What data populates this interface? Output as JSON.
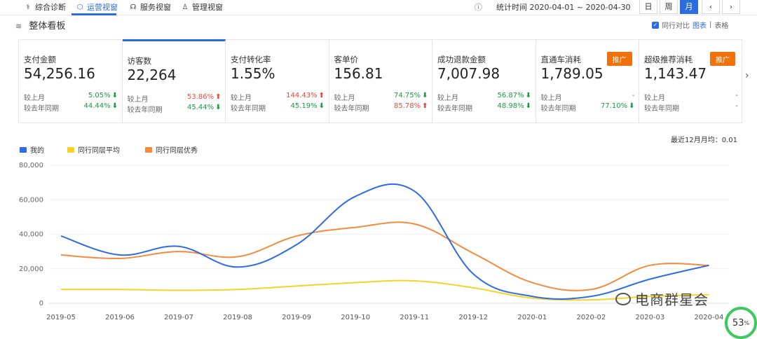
{
  "nav": {
    "tabs": [
      {
        "label": "综合诊断",
        "icon": "stethoscope-icon",
        "active": false
      },
      {
        "label": "运营视窗",
        "icon": "shield-icon",
        "active": true
      },
      {
        "label": "服务视窗",
        "icon": "headset-icon",
        "active": false
      },
      {
        "label": "管理视窗",
        "icon": "badge-icon",
        "active": false
      }
    ],
    "stat_time": "统计时间 2020-04-01 ~ 2020-04-30",
    "period_buttons": [
      "日",
      "周",
      "月"
    ],
    "active_period": "月",
    "prev": "‹",
    "next": "›"
  },
  "section": {
    "title": "整体看板",
    "compare_label": "同行对比",
    "view_chart": "图表",
    "view_sep": "|",
    "view_table": "表格"
  },
  "cards": [
    {
      "title": "支付金额",
      "value": "54,256.16",
      "mom_label": "较上月",
      "mom": "5.05%",
      "mom_dir": "down",
      "yoy_label": "较去年同期",
      "yoy": "44.44%",
      "yoy_dir": "down"
    },
    {
      "title": "访客数",
      "value": "22,264",
      "mom_label": "较上月",
      "mom": "53.86%",
      "mom_dir": "up",
      "yoy_label": "较去年同期",
      "yoy": "45.44%",
      "yoy_dir": "down"
    },
    {
      "title": "支付转化率",
      "value": "1.55%",
      "mom_label": "较上月",
      "mom": "144.43%",
      "mom_dir": "up",
      "yoy_label": "较去年同期",
      "yoy": "45.19%",
      "yoy_dir": "down"
    },
    {
      "title": "客单价",
      "value": "156.81",
      "mom_label": "较上月",
      "mom": "74.75%",
      "mom_dir": "down",
      "yoy_label": "较去年同期",
      "yoy": "85.78%",
      "yoy_dir": "up"
    },
    {
      "title": "成功退款金额",
      "value": "7,007.98",
      "mom_label": "较上月",
      "mom": "56.87%",
      "mom_dir": "down",
      "yoy_label": "较去年同期",
      "yoy": "48.98%",
      "yoy_dir": "down"
    },
    {
      "title": "直通车消耗",
      "value": "1,789.05",
      "badge": "推广",
      "mom_label": "较上月",
      "mom": "-",
      "mom_dir": "none",
      "yoy_label": "较去年同期",
      "yoy": "77.10%",
      "yoy_dir": "down"
    },
    {
      "title": "超级推荐消耗",
      "value": "1,143.47",
      "badge": "推广",
      "mom_label": "较上月",
      "mom": "-",
      "mom_dir": "none",
      "yoy_label": "较去年同期",
      "yoy": "-",
      "yoy_dir": "none"
    }
  ],
  "chart_note": "最近12月月均：0.01",
  "colors": {
    "me": "#2e6be6",
    "avg": "#f5d327",
    "top": "#f58a3c",
    "accent": "#2b6cde"
  },
  "chart_data": {
    "type": "line",
    "x": [
      "2019-05",
      "2019-06",
      "2019-07",
      "2019-08",
      "2019-09",
      "2019-10",
      "2019-11",
      "2019-12",
      "2020-01",
      "2020-02",
      "2020-03",
      "2020-04"
    ],
    "y_ticks": [
      "80,000",
      "60,000",
      "40,000",
      "20,000",
      "0"
    ],
    "ylim": [
      0,
      80000
    ],
    "grid": true,
    "legend": "top-left",
    "series": [
      {
        "name": "我的",
        "values": [
          39000,
          28000,
          33000,
          21000,
          34000,
          62000,
          65000,
          17000,
          4000,
          4000,
          14000,
          22000
        ]
      },
      {
        "name": "同行同层平均",
        "values": [
          8000,
          8000,
          7500,
          8000,
          10000,
          12000,
          13000,
          9000,
          3000,
          2000,
          4000,
          5000
        ]
      },
      {
        "name": "同行同层优秀",
        "values": [
          28000,
          26000,
          30000,
          27000,
          39000,
          44000,
          46000,
          29000,
          12000,
          8000,
          22000,
          22000
        ]
      }
    ]
  },
  "watermark": "电商群星会",
  "progress_value": "53",
  "progress_unit": "%"
}
